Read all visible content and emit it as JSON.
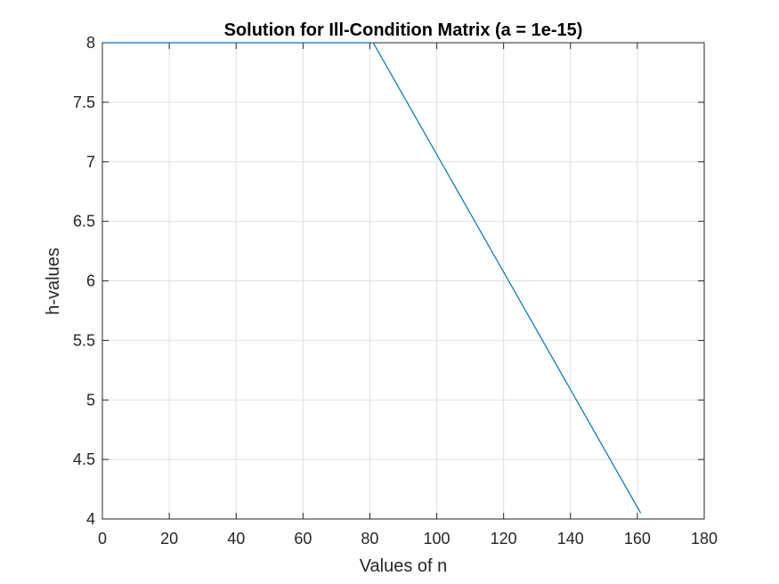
{
  "chart_data": {
    "type": "line",
    "title": "Solution for Ill-Condition Matrix (a = 1e-15)",
    "xlabel": "Values of n",
    "ylabel": "h-values",
    "xlim": [
      0,
      180
    ],
    "ylim": [
      4,
      8
    ],
    "x_ticks": [
      0,
      20,
      40,
      60,
      80,
      100,
      120,
      140,
      160,
      180
    ],
    "x_tick_labels": [
      "0",
      "20",
      "40",
      "60",
      "80",
      "100",
      "120",
      "140",
      "160",
      "180"
    ],
    "y_ticks": [
      4,
      4.5,
      5,
      5.5,
      6,
      6.5,
      7,
      7.5,
      8
    ],
    "y_tick_labels": [
      "4",
      "4.5",
      "5",
      "5.5",
      "6",
      "6.5",
      "7",
      "7.5",
      "8"
    ],
    "grid": true,
    "legend": "none",
    "series": [
      {
        "x": [
          1,
          81,
          161
        ],
        "y": [
          8,
          8,
          4.05
        ],
        "color": "#0072BD"
      }
    ]
  }
}
